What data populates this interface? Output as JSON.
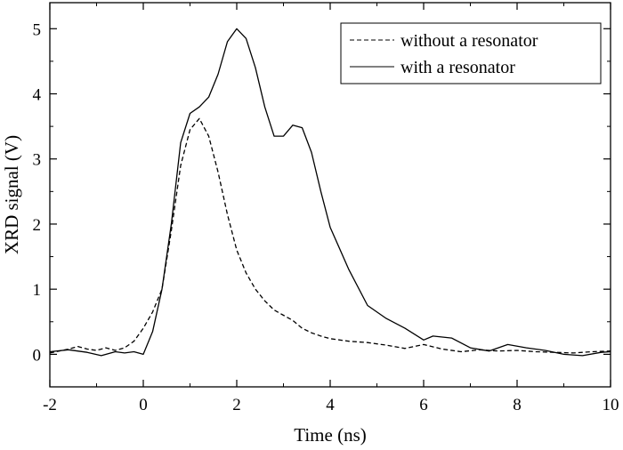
{
  "chart_data": {
    "type": "line",
    "xlabel": "Time (ns)",
    "ylabel": "XRD signal (V)",
    "xlim": [
      -2,
      10
    ],
    "ylim": [
      -0.5,
      5.4
    ],
    "xticks": [
      -2,
      0,
      2,
      4,
      6,
      8,
      10
    ],
    "yticks": [
      0,
      1,
      2,
      3,
      4,
      5
    ],
    "grid": false,
    "legend_position": "top-right",
    "series": [
      {
        "name": "without a resonator",
        "style": "dashed",
        "color": "#000000",
        "x": [
          -2.0,
          -1.8,
          -1.6,
          -1.4,
          -1.2,
          -1.0,
          -0.8,
          -0.6,
          -0.4,
          -0.2,
          0.0,
          0.2,
          0.4,
          0.6,
          0.8,
          1.0,
          1.2,
          1.4,
          1.6,
          1.8,
          2.0,
          2.2,
          2.4,
          2.6,
          2.8,
          3.0,
          3.2,
          3.4,
          3.6,
          3.8,
          4.0,
          4.4,
          4.8,
          5.2,
          5.6,
          6.0,
          6.4,
          6.8,
          7.2,
          7.6,
          8.0,
          8.4,
          8.8,
          9.2,
          9.6,
          10.0
        ],
        "values": [
          0.02,
          0.05,
          0.08,
          0.12,
          0.08,
          0.06,
          0.1,
          0.06,
          0.1,
          0.2,
          0.4,
          0.65,
          1.0,
          1.9,
          2.9,
          3.45,
          3.62,
          3.35,
          2.8,
          2.15,
          1.6,
          1.25,
          1.0,
          0.82,
          0.68,
          0.6,
          0.52,
          0.4,
          0.33,
          0.28,
          0.24,
          0.2,
          0.18,
          0.14,
          0.09,
          0.15,
          0.08,
          0.04,
          0.07,
          0.05,
          0.06,
          0.04,
          0.03,
          0.02,
          0.04,
          0.05
        ]
      },
      {
        "name": "with a resonator",
        "style": "solid",
        "color": "#000000",
        "x": [
          -2.0,
          -1.6,
          -1.2,
          -0.9,
          -0.6,
          -0.4,
          -0.2,
          0.0,
          0.2,
          0.4,
          0.6,
          0.8,
          1.0,
          1.2,
          1.4,
          1.6,
          1.8,
          2.0,
          2.2,
          2.4,
          2.6,
          2.8,
          3.0,
          3.2,
          3.4,
          3.6,
          3.8,
          4.0,
          4.4,
          4.8,
          5.2,
          5.6,
          6.0,
          6.2,
          6.6,
          7.0,
          7.4,
          7.8,
          8.2,
          8.6,
          9.0,
          9.4,
          9.8,
          10.0
        ],
        "values": [
          0.04,
          0.07,
          0.03,
          -0.02,
          0.04,
          0.02,
          0.04,
          0.0,
          0.35,
          1.0,
          2.0,
          3.25,
          3.7,
          3.8,
          3.95,
          4.3,
          4.8,
          5.0,
          4.85,
          4.4,
          3.8,
          3.35,
          3.35,
          3.52,
          3.48,
          3.1,
          2.5,
          1.95,
          1.3,
          0.75,
          0.55,
          0.4,
          0.22,
          0.28,
          0.25,
          0.1,
          0.05,
          0.15,
          0.1,
          0.06,
          0.0,
          -0.02,
          0.03,
          0.04
        ]
      }
    ]
  }
}
